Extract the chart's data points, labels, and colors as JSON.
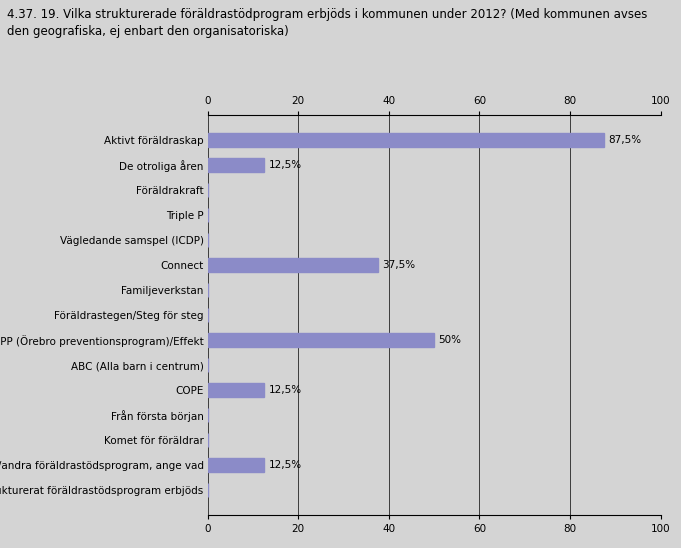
{
  "title_line1": "4.37. 19. Vilka strukturerade föräldrastödprogram erbjöds i kommunen under 2012? (Med kommunen avses",
  "title_line2": "den geografiska, ej enbart den organisatoriska)",
  "categories": [
    "Aktivt föräldraskap",
    "De otroliga åren",
    "Föräldrakraft",
    "Triple P",
    "Vägledande samspel (ICDP)",
    "Connect",
    "Familjeverkstan",
    "Föräldrastegen/Steg för steg",
    "ÖPP (Örebro preventionsprogram)/Effekt",
    "ABC (Alla barn i centrum)",
    "COPE",
    "Från första början",
    "Komet för föräldrar",
    "Annat/andra föräldrastödsprogram, ange vad",
    "Inget strukturerat föräldrastödsprogram erbjöds"
  ],
  "values": [
    87.5,
    12.5,
    0,
    0,
    0,
    37.5,
    0,
    0,
    50,
    0,
    12.5,
    0,
    0,
    12.5,
    0
  ],
  "labels": [
    "87,5%",
    "12,5%",
    "",
    "",
    "",
    "37,5%",
    "",
    "",
    "50%",
    "",
    "12,5%",
    "",
    "",
    "12,5%",
    ""
  ],
  "bar_color": "#8b8bc8",
  "bg_color": "#d4d4d4",
  "xlim": [
    0,
    100
  ],
  "xticks": [
    0,
    20,
    40,
    60,
    80,
    100
  ],
  "title_fontsize": 8.5,
  "label_fontsize": 7.5,
  "tick_fontsize": 7.5
}
